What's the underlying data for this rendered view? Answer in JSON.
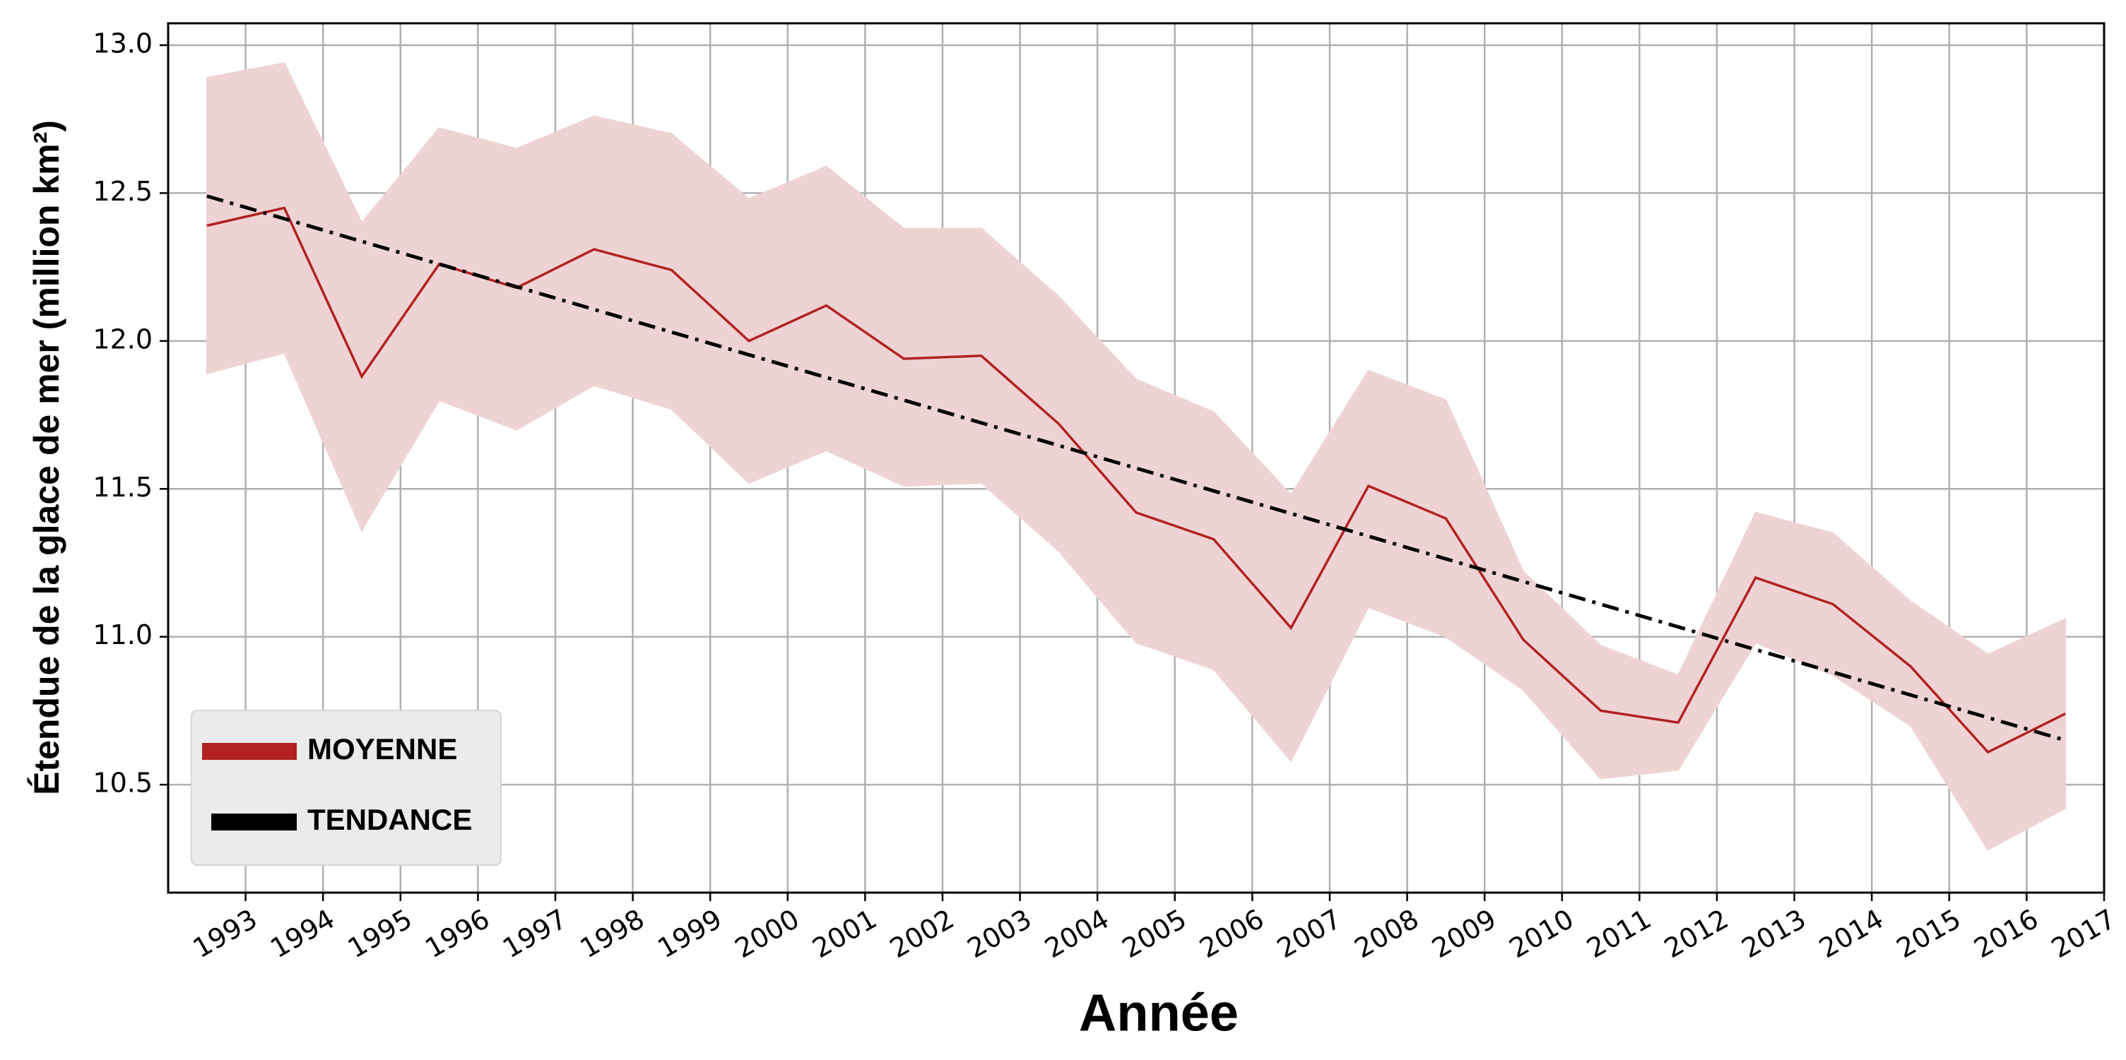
{
  "chart_data": {
    "type": "line",
    "xlabel": "Année",
    "ylabel": "Étendue de la glace de mer (million km²)",
    "xlim": [
      1992,
      2017
    ],
    "xticks": [
      1993,
      1994,
      1995,
      1996,
      1997,
      1998,
      1999,
      2000,
      2001,
      2002,
      2003,
      2004,
      2005,
      2006,
      2007,
      2008,
      2009,
      2010,
      2011,
      2012,
      2013,
      2014,
      2015,
      2016,
      2017
    ],
    "ylim": [
      10.135,
      13.074
    ],
    "yticks": [
      {
        "value": 10.5,
        "label": "10.5"
      },
      {
        "value": 11,
        "label": "11.0"
      },
      {
        "value": 11.5,
        "label": "11.5"
      },
      {
        "value": 12,
        "label": "12.0"
      },
      {
        "value": 12.5,
        "label": "12.5"
      },
      {
        "value": 13,
        "label": "13.0"
      }
    ],
    "grid": true,
    "legend": "lower left",
    "series": [
      {
        "name": "MOYENNE",
        "color": "#b22222",
        "band_color": "#efd3d4",
        "x": [
          1992.5,
          1993.5,
          1994.5,
          1995.5,
          1996.5,
          1997.5,
          1998.5,
          1999.5,
          2000.5,
          2001.5,
          2002.5,
          2003.5,
          2004.5,
          2005.5,
          2006.5,
          2007.5,
          2008.5,
          2009.5,
          2010.5,
          2011.5,
          2012.5,
          2013.5,
          2014.5,
          2015.5,
          2016.5
        ],
        "values": [
          12.39,
          12.45,
          11.88,
          12.26,
          12.18,
          12.31,
          12.24,
          12.0,
          12.12,
          11.94,
          11.95,
          11.72,
          11.42,
          11.33,
          11.03,
          11.51,
          11.4,
          10.99,
          10.75,
          10.71,
          11.2,
          11.11,
          10.9,
          10.61,
          10.74
        ],
        "upper": [
          12.89,
          12.94,
          12.4,
          12.72,
          12.65,
          12.76,
          12.7,
          12.48,
          12.59,
          12.38,
          12.38,
          12.15,
          11.87,
          11.76,
          11.48,
          11.9,
          11.8,
          11.22,
          10.97,
          10.87,
          11.42,
          11.35,
          11.12,
          10.94,
          11.06
        ],
        "lower": [
          11.89,
          11.96,
          11.36,
          11.8,
          11.7,
          11.85,
          11.77,
          11.52,
          11.63,
          11.51,
          11.52,
          11.29,
          10.98,
          10.89,
          10.58,
          11.1,
          11.0,
          10.82,
          10.52,
          10.55,
          10.98,
          10.87,
          10.7,
          10.28,
          10.42
        ]
      },
      {
        "name": "TENDANCE",
        "color": "#000000",
        "linestyle": "dashdot",
        "x": [
          1992.5,
          2016.5
        ],
        "values": [
          12.49,
          10.65
        ]
      }
    ]
  }
}
